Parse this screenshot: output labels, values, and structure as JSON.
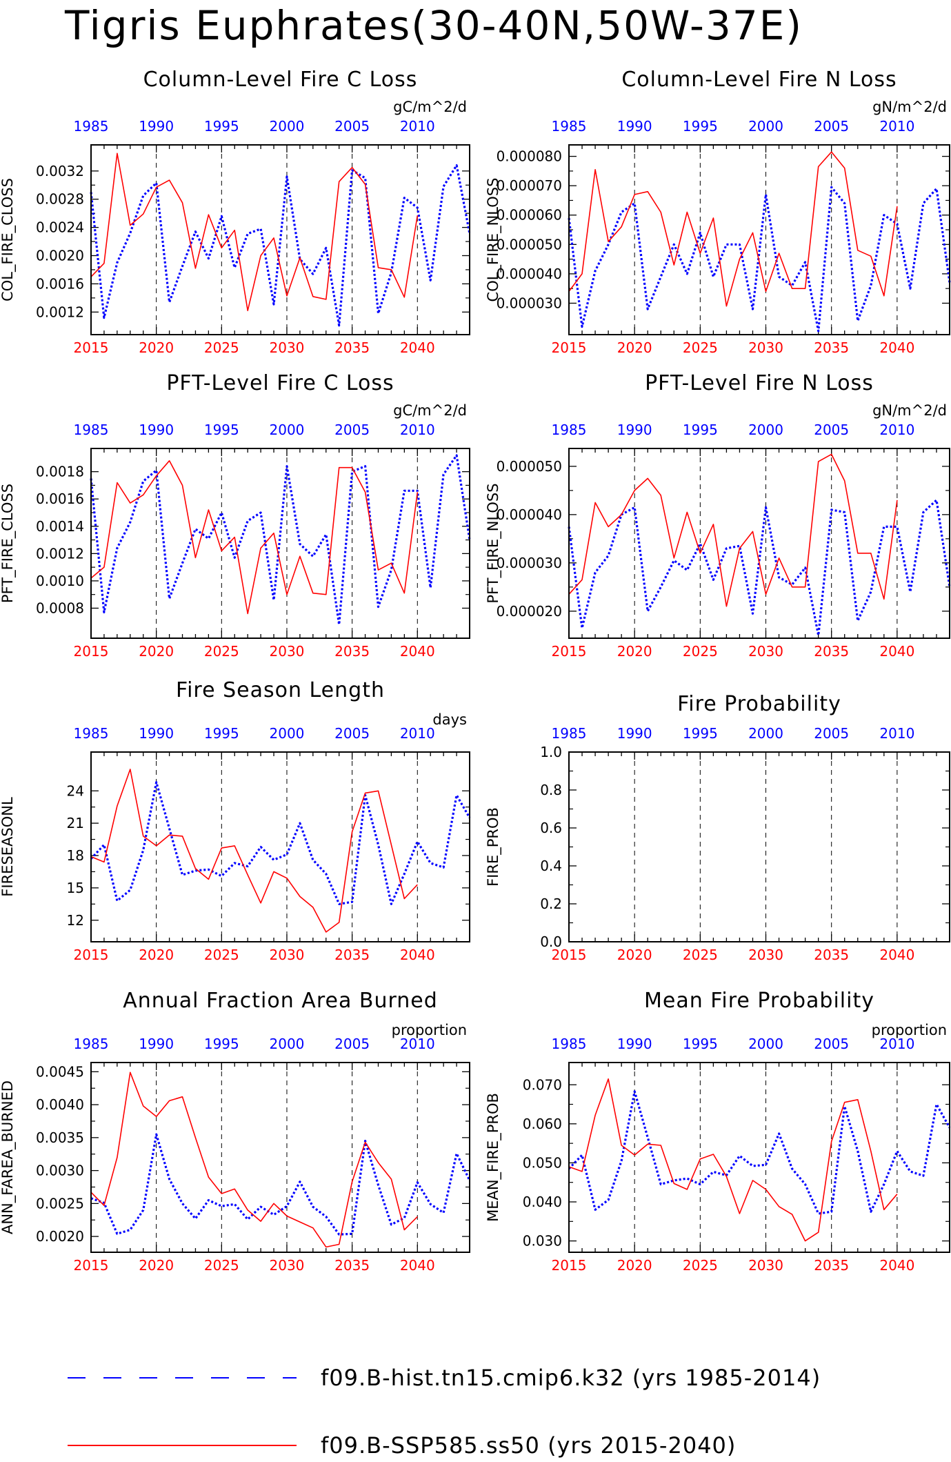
{
  "title": "Tigris Euphrates(30-40N,50W-37E)",
  "colors": {
    "hist": "#0000ff",
    "ssp": "#ff0000",
    "axis": "#000000"
  },
  "legend": [
    {
      "label": "f09.B-hist.tn15.cmip6.k32 (yrs 1985-2014)",
      "color": "#0000ff",
      "style": "dashed"
    },
    {
      "label": "f09.B-SSP585.ss50 (yrs 2015-2040)",
      "color": "#ff0000",
      "style": "solid"
    }
  ],
  "chart_data": [
    {
      "type": "line",
      "title": "Column-Level Fire C Loss",
      "ylabel": "COL_FIRE_CLOSS",
      "units": "gC/m^2/d",
      "ylim": [
        0.00088,
        0.00357
      ],
      "yticks": [
        "0.0012",
        "0.0016",
        "0.0020",
        "0.0024",
        "0.0028",
        "0.0032"
      ],
      "top_xticks": [
        "1985",
        "1990",
        "1995",
        "2000",
        "2005",
        "2010"
      ],
      "bottom_xticks": [
        "2015",
        "2020",
        "2025",
        "2030",
        "2035",
        "2040"
      ],
      "xlim_bottom": [
        2015,
        2044
      ],
      "xlim_top": [
        1985,
        2014
      ],
      "series": [
        {
          "name": "f09.B-hist.tn15.cmip6.k32 (yrs 1985-2014)",
          "axis": "top",
          "start": 1985,
          "values": [
            0.0029,
            0.00112,
            0.0019,
            0.00232,
            0.00285,
            0.00303,
            0.00134,
            0.00185,
            0.00234,
            0.00196,
            0.00256,
            0.00183,
            0.00231,
            0.00238,
            0.00131,
            0.00312,
            0.00195,
            0.00174,
            0.00211,
            0.00101,
            0.00321,
            0.0031,
            0.00118,
            0.00176,
            0.00282,
            0.00268,
            0.00165,
            0.00298,
            0.00328,
            0.00231
          ]
        },
        {
          "name": "f09.B-SSP585.ss50 (yrs 2015-2040)",
          "axis": "bottom",
          "start": 2015,
          "values": [
            0.0017,
            0.00189,
            0.00345,
            0.00243,
            0.00259,
            0.00297,
            0.00307,
            0.00275,
            0.00182,
            0.00258,
            0.00211,
            0.00236,
            0.00122,
            0.002,
            0.00225,
            0.00143,
            0.00197,
            0.00142,
            0.00138,
            0.00305,
            0.00325,
            0.00301,
            0.00183,
            0.0018,
            0.00141,
            0.00257
          ]
        }
      ]
    },
    {
      "type": "line",
      "title": "Column-Level Fire N Loss",
      "ylabel": "COL_FIRE_NLOSS",
      "units": "gN/m^2/d",
      "ylim": [
        1.93e-05,
        8.39e-05
      ],
      "yticks": [
        "0.000030",
        "0.000040",
        "0.000050",
        "0.000060",
        "0.000070",
        "0.000080"
      ],
      "top_xticks": [
        "1985",
        "1990",
        "1995",
        "2000",
        "2005",
        "2010"
      ],
      "bottom_xticks": [
        "2015",
        "2020",
        "2025",
        "2030",
        "2035",
        "2040"
      ],
      "xlim_bottom": [
        2015,
        2044
      ],
      "xlim_top": [
        1985,
        2014
      ],
      "series": [
        {
          "name": "f09.B-hist.tn15.cmip6.k32 (yrs 1985-2014)",
          "axis": "top",
          "start": 1985,
          "values": [
            5.9e-05,
            2.2e-05,
            4.1e-05,
            5e-05,
            6.1e-05,
            6.4e-05,
            2.8e-05,
            3.9e-05,
            5e-05,
            4e-05,
            5.4e-05,
            3.9e-05,
            5e-05,
            5e-05,
            2.8e-05,
            6.7e-05,
            3.9e-05,
            3.6e-05,
            4.4e-05,
            2.05e-05,
            6.95e-05,
            6.4e-05,
            2.4e-05,
            3.6e-05,
            6e-05,
            5.7e-05,
            3.5e-05,
            6.4e-05,
            6.9e-05,
            3.7e-05
          ]
        },
        {
          "name": "f09.B-SSP585.ss50 (yrs 2015-2040)",
          "axis": "bottom",
          "start": 2015,
          "values": [
            3.4e-05,
            4e-05,
            7.55e-05,
            5.1e-05,
            5.6e-05,
            6.7e-05,
            6.8e-05,
            6.1e-05,
            4.3e-05,
            6.1e-05,
            4.7e-05,
            5.9e-05,
            2.9e-05,
            4.5e-05,
            5.4e-05,
            3.4e-05,
            4.7e-05,
            3.5e-05,
            3.5e-05,
            7.65e-05,
            8.15e-05,
            7.6e-05,
            4.8e-05,
            4.6e-05,
            3.25e-05,
            6.3e-05
          ]
        }
      ]
    },
    {
      "type": "line",
      "title": "PFT-Level Fire C Loss",
      "ylabel": "PFT_FIRE_CLOSS",
      "units": "gC/m^2/d",
      "ylim": [
        0.00058,
        0.00197
      ],
      "yticks": [
        "0.0008",
        "0.0010",
        "0.0012",
        "0.0014",
        "0.0016",
        "0.0018"
      ],
      "top_xticks": [
        "1985",
        "1990",
        "1995",
        "2000",
        "2005",
        "2010"
      ],
      "bottom_xticks": [
        "2015",
        "2020",
        "2025",
        "2030",
        "2035",
        "2040"
      ],
      "xlim_bottom": [
        2015,
        2044
      ],
      "xlim_top": [
        1985,
        2014
      ],
      "series": [
        {
          "name": "f09.B-hist.tn15.cmip6.k32 (yrs 1985-2014)",
          "axis": "top",
          "start": 1985,
          "values": [
            0.00175,
            0.00077,
            0.00124,
            0.00143,
            0.00173,
            0.00181,
            0.00087,
            0.00113,
            0.00138,
            0.00131,
            0.0015,
            0.00117,
            0.00144,
            0.0015,
            0.00086,
            0.00184,
            0.00127,
            0.00118,
            0.00134,
            0.00068,
            0.0018,
            0.00184,
            0.00081,
            0.00108,
            0.00166,
            0.00166,
            0.00095,
            0.00178,
            0.00192,
            0.0013
          ]
        },
        {
          "name": "f09.B-SSP585.ss50 (yrs 2015-2040)",
          "axis": "bottom",
          "start": 2015,
          "values": [
            0.00102,
            0.0011,
            0.00172,
            0.00157,
            0.00163,
            0.00177,
            0.00188,
            0.0017,
            0.00117,
            0.00152,
            0.00122,
            0.00132,
            0.00076,
            0.00124,
            0.00135,
            0.0009,
            0.00118,
            0.00091,
            0.0009,
            0.00183,
            0.00183,
            0.00165,
            0.00108,
            0.00113,
            0.00091,
            0.00165
          ]
        }
      ]
    },
    {
      "type": "line",
      "title": "PFT-Level Fire N Loss",
      "ylabel": "PFT_FIRE_NLOSS",
      "units": "gN/m^2/d",
      "ylim": [
        1.44e-05,
        5.37e-05
      ],
      "yticks": [
        "0.000020",
        "0.000030",
        "0.000040",
        "0.000050"
      ],
      "top_xticks": [
        "1985",
        "1990",
        "1995",
        "2000",
        "2005",
        "2010"
      ],
      "bottom_xticks": [
        "2015",
        "2020",
        "2025",
        "2030",
        "2035",
        "2040"
      ],
      "xlim_bottom": [
        2015,
        2044
      ],
      "xlim_top": [
        1985,
        2014
      ],
      "series": [
        {
          "name": "f09.B-hist.tn15.cmip6.k32 (yrs 1985-2014)",
          "axis": "top",
          "start": 1985,
          "values": [
            3.75e-05,
            1.65e-05,
            2.8e-05,
            3.15e-05,
            4e-05,
            4.15e-05,
            2e-05,
            2.5e-05,
            3.05e-05,
            2.85e-05,
            3.4e-05,
            2.65e-05,
            3.3e-05,
            3.35e-05,
            1.95e-05,
            4.15e-05,
            2.7e-05,
            2.55e-05,
            2.9e-05,
            1.5e-05,
            4.1e-05,
            4.05e-05,
            1.8e-05,
            2.4e-05,
            3.75e-05,
            3.75e-05,
            2.4e-05,
            4.05e-05,
            4.3e-05,
            2.5e-05
          ]
        },
        {
          "name": "f09.B-SSP585.ss50 (yrs 2015-2040)",
          "axis": "bottom",
          "start": 2015,
          "values": [
            2.35e-05,
            2.65e-05,
            4.25e-05,
            3.75e-05,
            4e-05,
            4.5e-05,
            4.75e-05,
            4.4e-05,
            3.1e-05,
            4.05e-05,
            3.2e-05,
            3.8e-05,
            2.1e-05,
            3.3e-05,
            3.65e-05,
            2.35e-05,
            3.1e-05,
            2.5e-05,
            2.5e-05,
            5.1e-05,
            5.25e-05,
            4.7e-05,
            3.2e-05,
            3.2e-05,
            2.25e-05,
            4.3e-05
          ]
        }
      ]
    },
    {
      "type": "line",
      "title": "Fire Season Length",
      "ylabel": "FIRESEASONL",
      "units": "days",
      "ylim": [
        10.0,
        27.6
      ],
      "yticks": [
        "12",
        "15",
        "18",
        "21",
        "24"
      ],
      "top_xticks": [
        "1985",
        "1990",
        "1995",
        "2000",
        "2005",
        "2010"
      ],
      "bottom_xticks": [
        "2015",
        "2020",
        "2025",
        "2030",
        "2035",
        "2040"
      ],
      "xlim_bottom": [
        2015,
        2044
      ],
      "xlim_top": [
        1985,
        2014
      ],
      "series": [
        {
          "name": "f09.B-hist.tn15.cmip6.k32 (yrs 1985-2014)",
          "axis": "top",
          "start": 1985,
          "values": [
            17.7,
            19.0,
            13.8,
            14.8,
            18.5,
            24.8,
            20.5,
            16.2,
            16.6,
            16.7,
            16.1,
            17.3,
            17.0,
            18.8,
            17.6,
            18.1,
            21.0,
            17.6,
            16.3,
            13.5,
            13.7,
            23.6,
            19.0,
            13.5,
            16.3,
            19.3,
            17.3,
            16.9,
            23.6,
            21.5
          ]
        },
        {
          "name": "f09.B-SSP585.ss50 (yrs 2015-2040)",
          "axis": "bottom",
          "start": 2015,
          "values": [
            17.9,
            17.4,
            22.6,
            26.0,
            19.8,
            18.9,
            19.9,
            19.8,
            16.8,
            15.8,
            18.7,
            18.9,
            16.2,
            13.6,
            16.5,
            15.9,
            14.2,
            13.2,
            10.9,
            11.8,
            20.2,
            23.8,
            24.0,
            19.0,
            14.0,
            15.3
          ]
        }
      ]
    },
    {
      "type": "line",
      "title": "Fire Probability",
      "ylabel": "FIRE_PROB",
      "units": "",
      "ylim": [
        0.0,
        1.0
      ],
      "yticks": [
        "0.0",
        "0.2",
        "0.4",
        "0.6",
        "0.8",
        "1.0"
      ],
      "top_xticks": [
        "1985",
        "1990",
        "1995",
        "2000",
        "2005",
        "2010"
      ],
      "bottom_xticks": [
        "2015",
        "2020",
        "2025",
        "2030",
        "2035",
        "2040"
      ],
      "xlim_bottom": [
        2015,
        2044
      ],
      "xlim_top": [
        1985,
        2014
      ],
      "series": []
    },
    {
      "type": "line",
      "title": "Annual Fraction Area Burned",
      "ylabel": "ANN_FAREA_BURNED",
      "units": "proportion",
      "ylim": [
        0.00176,
        0.00464
      ],
      "yticks": [
        "0.0020",
        "0.0025",
        "0.0030",
        "0.0035",
        "0.0040",
        "0.0045"
      ],
      "top_xticks": [
        "1985",
        "1990",
        "1995",
        "2000",
        "2005",
        "2010"
      ],
      "bottom_xticks": [
        "2015",
        "2020",
        "2025",
        "2030",
        "2035",
        "2040"
      ],
      "xlim_bottom": [
        2015,
        2044
      ],
      "xlim_top": [
        1985,
        2014
      ],
      "series": [
        {
          "name": "f09.B-hist.tn15.cmip6.k32 (yrs 1985-2014)",
          "axis": "top",
          "start": 1985,
          "values": [
            0.00258,
            0.00251,
            0.00204,
            0.0021,
            0.0024,
            0.00355,
            0.00287,
            0.0025,
            0.00227,
            0.00255,
            0.00246,
            0.00249,
            0.00226,
            0.00245,
            0.00233,
            0.00246,
            0.00283,
            0.00245,
            0.0023,
            0.00203,
            0.00204,
            0.00345,
            0.00278,
            0.00218,
            0.00228,
            0.00282,
            0.00249,
            0.00236,
            0.00326,
            0.00285
          ]
        },
        {
          "name": "f09.B-SSP585.ss50 (yrs 2015-2040)",
          "axis": "bottom",
          "start": 2015,
          "values": [
            0.00267,
            0.00247,
            0.0032,
            0.00449,
            0.00398,
            0.00382,
            0.00406,
            0.00412,
            0.0035,
            0.0029,
            0.00265,
            0.00272,
            0.0024,
            0.00223,
            0.0025,
            0.00231,
            0.00222,
            0.00213,
            0.00184,
            0.00188,
            0.00283,
            0.00343,
            0.00312,
            0.00287,
            0.0021,
            0.0023
          ]
        }
      ]
    },
    {
      "type": "line",
      "title": "Mean Fire Probability",
      "ylabel": "MEAN_FIRE_PROB",
      "units": "proportion",
      "ylim": [
        0.0271,
        0.0757
      ],
      "yticks": [
        "0.030",
        "0.040",
        "0.050",
        "0.060",
        "0.070"
      ],
      "top_xticks": [
        "1985",
        "1990",
        "1995",
        "2000",
        "2005",
        "2010"
      ],
      "bottom_xticks": [
        "2015",
        "2020",
        "2025",
        "2030",
        "2035",
        "2040"
      ],
      "xlim_bottom": [
        2015,
        2044
      ],
      "xlim_top": [
        1985,
        2014
      ],
      "series": [
        {
          "name": "f09.B-hist.tn15.cmip6.k32 (yrs 1985-2014)",
          "axis": "top",
          "start": 1985,
          "values": [
            0.0485,
            0.052,
            0.038,
            0.0405,
            0.0505,
            0.0683,
            0.0565,
            0.0445,
            0.0455,
            0.046,
            0.0445,
            0.0477,
            0.0468,
            0.0518,
            0.0492,
            0.0495,
            0.0575,
            0.0485,
            0.0445,
            0.037,
            0.0375,
            0.0645,
            0.053,
            0.0375,
            0.0445,
            0.053,
            0.0478,
            0.0467,
            0.065,
            0.059
          ]
        },
        {
          "name": "f09.B-SSP585.ss50 (yrs 2015-2040)",
          "axis": "bottom",
          "start": 2015,
          "values": [
            0.049,
            0.0478,
            0.0622,
            0.0715,
            0.0545,
            0.052,
            0.0548,
            0.0545,
            0.0447,
            0.0432,
            0.051,
            0.0522,
            0.0465,
            0.037,
            0.0455,
            0.0432,
            0.0388,
            0.0368,
            0.03,
            0.0322,
            0.0555,
            0.0655,
            0.0662,
            0.053,
            0.038,
            0.042
          ]
        }
      ]
    }
  ]
}
